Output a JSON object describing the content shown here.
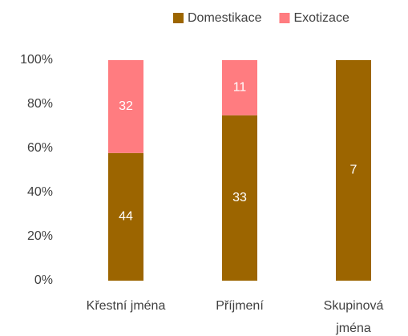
{
  "chart_data": {
    "type": "bar",
    "stacking": "percent",
    "categories": [
      "Křestní jména",
      "Příjmení",
      "Skupinová jména"
    ],
    "series": [
      {
        "name": "Domestikace",
        "color": "#9c6500",
        "values": [
          44,
          33,
          7
        ]
      },
      {
        "name": "Exotizace",
        "color": "#ff7c80",
        "values": [
          32,
          11,
          null
        ]
      }
    ],
    "ylim": [
      0,
      100
    ],
    "yticks": [
      {
        "value": 0,
        "label": "0%"
      },
      {
        "value": 20,
        "label": "20%"
      },
      {
        "value": 40,
        "label": "40%"
      },
      {
        "value": 60,
        "label": "60%"
      },
      {
        "value": 80,
        "label": "80%"
      },
      {
        "value": 100,
        "label": "100%"
      }
    ],
    "grid": false,
    "legend": "top-right"
  }
}
